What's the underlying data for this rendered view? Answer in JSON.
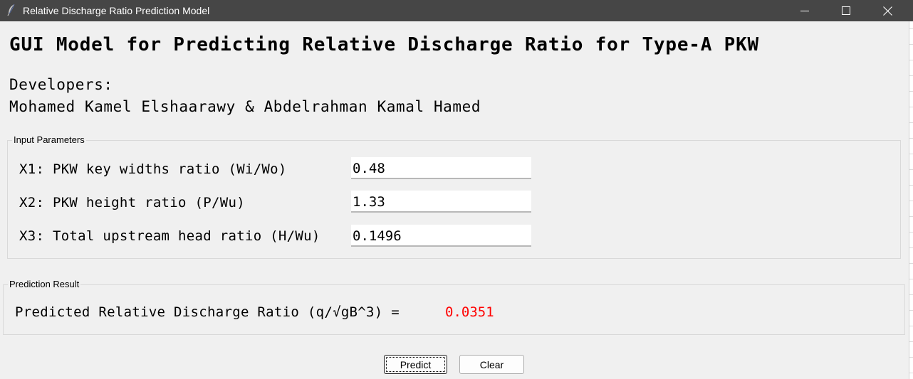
{
  "window": {
    "title": "Relative Discharge Ratio Prediction Model",
    "icon": "feather-icon",
    "controls": [
      "minimize-icon",
      "maximize-icon",
      "close-icon"
    ]
  },
  "header": {
    "title": "GUI Model for Predicting Relative Discharge Ratio for Type-A PKW",
    "developers_label": "Developers:",
    "developers_names": "Mohamed Kamel Elshaarawy & Abdelrahman Kamal Hamed"
  },
  "inputs": {
    "group_label": "Input Parameters",
    "params": [
      {
        "label": "X1: PKW key widths ratio (Wi/Wo)",
        "value": "0.48"
      },
      {
        "label": "X2: PKW height ratio (P/Wu)",
        "value": "1.33"
      },
      {
        "label": "X3: Total upstream head ratio (H/Wu)",
        "value": "0.1496"
      }
    ]
  },
  "result": {
    "group_label": "Prediction Result",
    "label": "Predicted Relative Discharge Ratio (q/√gB^3) =",
    "value": "0.0351",
    "value_color": "#ff0000"
  },
  "buttons": {
    "predict": "Predict",
    "clear": "Clear"
  },
  "colors": {
    "titlebar": "#464646",
    "background": "#f0f0f0"
  }
}
